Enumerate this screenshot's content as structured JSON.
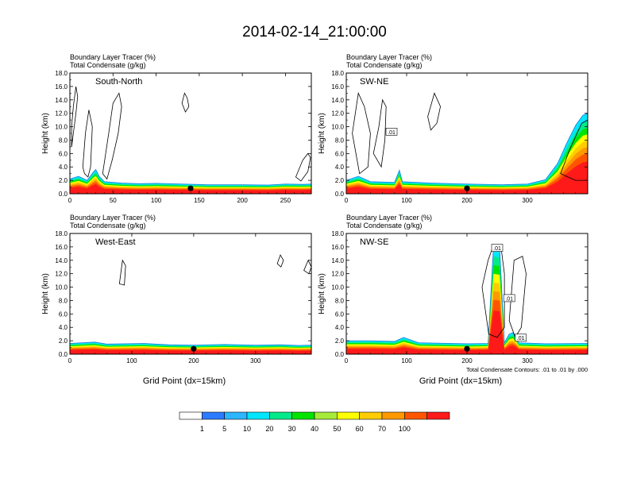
{
  "title": "2014-02-14_21:00:00",
  "chart_data": [
    {
      "type": "heatmap",
      "panel_label": "South-North",
      "subtitle_1": "Boundary Layer Tracer   (%)",
      "subtitle_2": "Total Condensate   (g/kg)",
      "ylabel": "Height (km)",
      "xlabel": "",
      "xlim": [
        0,
        280
      ],
      "ylim": [
        0,
        18
      ],
      "xticks": [
        0,
        50,
        100,
        150,
        200,
        250
      ],
      "yticks": [
        "0.0",
        "2.0",
        "4.0",
        "6.0",
        "8.0",
        "10.0",
        "12.0",
        "14.0",
        "16.0",
        "18.0"
      ],
      "marker": {
        "x": 140,
        "y": 0.45
      },
      "tracer_top": [
        [
          0,
          2.2
        ],
        [
          10,
          2.6
        ],
        [
          20,
          2.0
        ],
        [
          27,
          3.2
        ],
        [
          30,
          3.6
        ],
        [
          34,
          2.6
        ],
        [
          40,
          1.8
        ],
        [
          60,
          1.6
        ],
        [
          80,
          1.5
        ],
        [
          100,
          1.55
        ],
        [
          130,
          1.45
        ],
        [
          160,
          1.35
        ],
        [
          200,
          1.35
        ],
        [
          230,
          1.3
        ],
        [
          250,
          1.45
        ],
        [
          270,
          1.4
        ],
        [
          280,
          1.45
        ]
      ],
      "contours": [
        [
          [
            2,
            10
          ],
          [
            4,
            13
          ],
          [
            7,
            16
          ],
          [
            9,
            14.5
          ],
          [
            7,
            12
          ],
          [
            4,
            9
          ],
          [
            2,
            7
          ]
        ],
        [
          [
            15,
            4
          ],
          [
            18,
            9
          ],
          [
            22,
            12.5
          ],
          [
            26,
            10
          ],
          [
            25,
            7
          ],
          [
            24,
            4
          ],
          [
            21,
            2.5
          ],
          [
            17,
            3
          ]
        ],
        [
          [
            38,
            3
          ],
          [
            45,
            9
          ],
          [
            50,
            13.5
          ],
          [
            57,
            15
          ],
          [
            60,
            13
          ],
          [
            56,
            9
          ],
          [
            49,
            5
          ],
          [
            43,
            2.2
          ]
        ],
        [
          [
            130,
            13.5
          ],
          [
            133,
            15
          ],
          [
            136,
            14.3
          ],
          [
            138,
            13
          ],
          [
            134,
            12.2
          ]
        ],
        [
          [
            262,
            2.5
          ],
          [
            270,
            5
          ],
          [
            276,
            6
          ],
          [
            279,
            5.4
          ],
          [
            276,
            3.3
          ],
          [
            268,
            1.9
          ]
        ]
      ]
    },
    {
      "type": "heatmap",
      "panel_label": "SW-NE",
      "subtitle_1": "Boundary Layer Tracer   (%)",
      "subtitle_2": "Total Condensate   (g/kg)",
      "ylabel": "Height (km)",
      "xlabel": "",
      "xlim": [
        0,
        400
      ],
      "ylim": [
        0,
        18
      ],
      "xticks": [
        0,
        100,
        200,
        300
      ],
      "yticks": [
        "0.0",
        "2.0",
        "4.0",
        "6.0",
        "8.0",
        "10.0",
        "12.0",
        "14.0",
        "16.0",
        "18.0"
      ],
      "marker": {
        "x": 200,
        "y": 0.45
      },
      "contour_label": {
        "text": ".01",
        "x": 75,
        "y": 9.2
      },
      "tracer_top": [
        [
          0,
          2.0
        ],
        [
          20,
          2.6
        ],
        [
          40,
          1.8
        ],
        [
          80,
          1.7
        ],
        [
          88,
          3.5
        ],
        [
          93,
          1.8
        ],
        [
          140,
          1.6
        ],
        [
          200,
          1.45
        ],
        [
          260,
          1.35
        ],
        [
          300,
          1.45
        ],
        [
          330,
          2.1
        ],
        [
          350,
          4.5
        ],
        [
          365,
          7.5
        ],
        [
          380,
          10.2
        ],
        [
          392,
          11.7
        ],
        [
          400,
          12
        ]
      ],
      "contours": [
        [
          [
            10,
            9
          ],
          [
            20,
            15
          ],
          [
            30,
            13
          ],
          [
            40,
            9
          ],
          [
            36,
            4
          ],
          [
            22,
            3
          ]
        ],
        [
          [
            45,
            6
          ],
          [
            54,
            10
          ],
          [
            60,
            14
          ],
          [
            66,
            13
          ],
          [
            64,
            8
          ],
          [
            58,
            4
          ]
        ],
        [
          [
            135,
            11.5
          ],
          [
            146,
            15
          ],
          [
            156,
            13
          ],
          [
            150,
            10.5
          ],
          [
            140,
            9.5
          ]
        ],
        [
          [
            355,
            3
          ],
          [
            372,
            7
          ],
          [
            390,
            10.5
          ],
          [
            400,
            11
          ],
          [
            400,
            2
          ],
          [
            380,
            2
          ]
        ]
      ]
    },
    {
      "type": "heatmap",
      "panel_label": "West-East",
      "subtitle_1": "Boundary Layer Tracer   (%)",
      "subtitle_2": "Total Condensate   (g/kg)",
      "ylabel": "Height (km)",
      "xlabel": "Grid Point (dx=15km)",
      "xlim": [
        0,
        390
      ],
      "ylim": [
        0,
        18
      ],
      "xticks": [
        0,
        100,
        200,
        300
      ],
      "yticks": [
        "0.0",
        "2.0",
        "4.0",
        "6.0",
        "8.0",
        "10.0",
        "12.0",
        "14.0",
        "16.0",
        "18.0"
      ],
      "marker": {
        "x": 200,
        "y": 0.45
      },
      "tracer_top": [
        [
          0,
          1.6
        ],
        [
          40,
          1.8
        ],
        [
          60,
          1.5
        ],
        [
          120,
          1.6
        ],
        [
          160,
          1.4
        ],
        [
          200,
          1.35
        ],
        [
          250,
          1.45
        ],
        [
          300,
          1.35
        ],
        [
          340,
          1.4
        ],
        [
          370,
          1.3
        ],
        [
          390,
          1.35
        ]
      ],
      "contours": [
        [
          [
            80,
            10.5
          ],
          [
            85,
            14
          ],
          [
            90,
            13.2
          ],
          [
            88,
            10.3
          ]
        ],
        [
          [
            335,
            13.5
          ],
          [
            340,
            14.8
          ],
          [
            345,
            14
          ],
          [
            341,
            13
          ]
        ],
        [
          [
            378,
            12.5
          ],
          [
            385,
            14
          ],
          [
            390,
            13
          ],
          [
            386,
            12
          ]
        ]
      ]
    },
    {
      "type": "heatmap",
      "panel_label": "NW-SE",
      "subtitle_1": "Boundary Layer Tracer   (%)",
      "subtitle_2": "Total Condensate   (g/kg)",
      "ylabel": "Height (km)",
      "xlabel": "Grid Point (dx=15km)",
      "xlim": [
        0,
        400
      ],
      "ylim": [
        0,
        18
      ],
      "xticks": [
        0,
        100,
        200,
        300
      ],
      "yticks": [
        "0.0",
        "2.0",
        "4.0",
        "6.0",
        "8.0",
        "10.0",
        "12.0",
        "14.0",
        "16.0",
        "18.0"
      ],
      "marker": {
        "x": 200,
        "y": 0.45
      },
      "note": "Total Condensate Contours: .01 to .01 by .000",
      "contour_labels": [
        {
          "text": ".01",
          "x": 250,
          "y": 15.8
        },
        {
          "text": ".01",
          "x": 270,
          "y": 8.3
        },
        {
          "text": ".01",
          "x": 289,
          "y": 2.4
        }
      ],
      "tracer_top": [
        [
          0,
          2.0
        ],
        [
          40,
          2.0
        ],
        [
          80,
          1.9
        ],
        [
          95,
          2.5
        ],
        [
          120,
          1.7
        ],
        [
          200,
          1.55
        ],
        [
          235,
          1.6
        ],
        [
          244,
          16.2
        ],
        [
          254,
          16
        ],
        [
          262,
          1.7
        ],
        [
          270,
          3
        ],
        [
          276,
          3.2
        ],
        [
          282,
          2.5
        ],
        [
          286,
          1.7
        ],
        [
          330,
          1.55
        ],
        [
          400,
          1.6
        ]
      ],
      "contours": [
        [
          [
            225,
            10
          ],
          [
            235,
            14
          ],
          [
            244,
            16.3
          ],
          [
            256,
            16.2
          ],
          [
            262,
            12
          ],
          [
            262,
            4
          ],
          [
            250,
            2.5
          ],
          [
            236,
            3
          ]
        ],
        [
          [
            270,
            5
          ],
          [
            278,
            14
          ],
          [
            292,
            14.6
          ],
          [
            298,
            12
          ],
          [
            290,
            4
          ],
          [
            280,
            2.5
          ]
        ]
      ]
    }
  ],
  "colorbar": {
    "colors": [
      "#ffffff",
      "#2b7bff",
      "#2bb6ff",
      "#00e6ff",
      "#00ea8a",
      "#00e400",
      "#a6ea3a",
      "#ffff00",
      "#ffcc00",
      "#ff9900",
      "#ff5500",
      "#ff1a1a"
    ],
    "labels": [
      "1",
      "5",
      "10",
      "20",
      "30",
      "40",
      "50",
      "60",
      "70",
      "100"
    ]
  }
}
